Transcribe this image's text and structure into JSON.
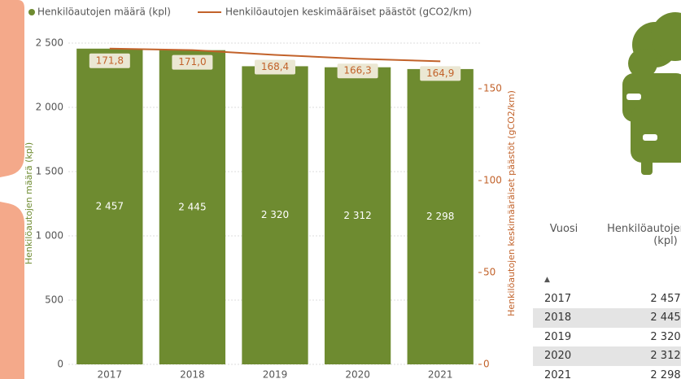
{
  "chart_data": {
    "type": "bar_line",
    "categories": [
      "2017",
      "2018",
      "2019",
      "2020",
      "2021"
    ],
    "series": [
      {
        "name": "Henkilöautojen määrä (kpl)",
        "color": "#6e8b30",
        "values": [
          2457,
          2445,
          2320,
          2312,
          2298
        ],
        "value_labels": [
          "2 457",
          "2 445",
          "2 320",
          "2 312",
          "2 298"
        ]
      },
      {
        "name": "Henkilöautojen keskimääräiset päästöt (gCO2/km)",
        "color": "#c2622a",
        "axis": "y2",
        "values": [
          171.8,
          171.0,
          168.4,
          166.3,
          164.9
        ],
        "value_labels": [
          "171,8",
          "171,0",
          "168,4",
          "166,3",
          "164,9"
        ]
      }
    ],
    "ylabel": "Henkilöautojen määrä (kpl)",
    "y2label": "Henkilöautojen keskimääräiset päästöt (gCO2/km)",
    "ylim": [
      0,
      2500
    ],
    "yticks": [
      0,
      500,
      {
        "value": 1000,
        "label": "1 000"
      },
      {
        "value": 1500,
        "label": "1 500"
      },
      {
        "value": 2000,
        "label": "2 000"
      },
      {
        "value": 2500,
        "label": "2 500"
      }
    ],
    "y2lim": [
      0,
      174.8
    ],
    "y2ticks": [
      0,
      50,
      100,
      150
    ],
    "grid": true
  },
  "table": {
    "header": [
      "Vuosi",
      "Henkilöautojen määrä (kpl)"
    ],
    "rows": [
      [
        "2017",
        "2 457"
      ],
      [
        "2018",
        "2 445"
      ],
      [
        "2019",
        "2 320"
      ],
      [
        "2020",
        "2 312"
      ],
      [
        "2021",
        "2 298"
      ]
    ]
  }
}
